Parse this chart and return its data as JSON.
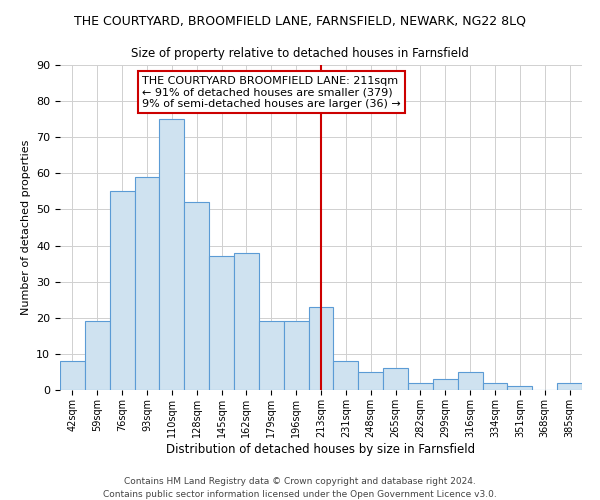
{
  "title": "THE COURTYARD, BROOMFIELD LANE, FARNSFIELD, NEWARK, NG22 8LQ",
  "subtitle": "Size of property relative to detached houses in Farnsfield",
  "xlabel": "Distribution of detached houses by size in Farnsfield",
  "ylabel": "Number of detached properties",
  "footer_line1": "Contains HM Land Registry data © Crown copyright and database right 2024.",
  "footer_line2": "Contains public sector information licensed under the Open Government Licence v3.0.",
  "bar_labels": [
    "42sqm",
    "59sqm",
    "76sqm",
    "93sqm",
    "110sqm",
    "128sqm",
    "145sqm",
    "162sqm",
    "179sqm",
    "196sqm",
    "213sqm",
    "231sqm",
    "248sqm",
    "265sqm",
    "282sqm",
    "299sqm",
    "316sqm",
    "334sqm",
    "351sqm",
    "368sqm",
    "385sqm"
  ],
  "bar_values": [
    8,
    19,
    55,
    59,
    75,
    52,
    37,
    38,
    19,
    19,
    23,
    8,
    5,
    6,
    2,
    3,
    5,
    2,
    1,
    0,
    2
  ],
  "bar_color": "#cfe2f0",
  "bar_edge_color": "#5b9bd5",
  "ylim": [
    0,
    90
  ],
  "yticks": [
    0,
    10,
    20,
    30,
    40,
    50,
    60,
    70,
    80,
    90
  ],
  "vline_x_index": 10,
  "vline_color": "#cc0000",
  "annotation_title": "THE COURTYARD BROOMFIELD LANE: 211sqm",
  "annotation_line1": "← 91% of detached houses are smaller (379)",
  "annotation_line2": "9% of semi-detached houses are larger (36) →",
  "annotation_box_color": "#ffffff",
  "annotation_box_edge_color": "#cc0000",
  "grid_color": "#d0d0d0",
  "background_color": "#ffffff",
  "title_fontsize": 9,
  "subtitle_fontsize": 8.5,
  "ylabel_fontsize": 8,
  "xlabel_fontsize": 8.5,
  "annotation_fontsize": 8,
  "footer_fontsize": 6.5
}
